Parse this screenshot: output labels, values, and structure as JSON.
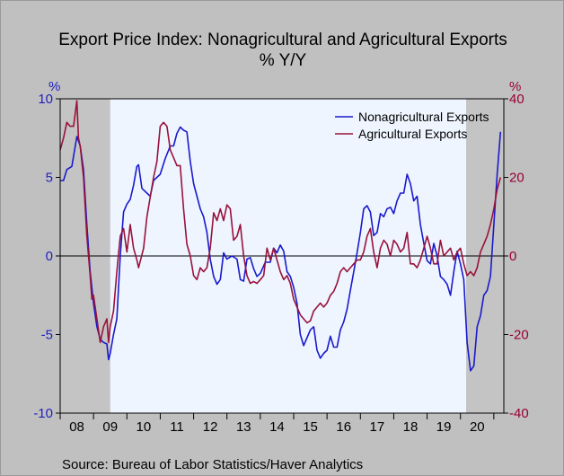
{
  "chart_data": {
    "type": "line",
    "title": "Export Price Index: Nonagricultural and Agricultural Exports",
    "subtitle": "% Y/Y",
    "left_axis": {
      "label": "%",
      "ticks": [
        10,
        5,
        0,
        -5,
        -10
      ],
      "range": [
        -10,
        10
      ],
      "color": "#1f1fbf"
    },
    "right_axis": {
      "label": "%",
      "ticks": [
        40,
        20,
        0,
        -20,
        -40
      ],
      "range": [
        -40,
        40
      ],
      "color": "#990033"
    },
    "x_axis": {
      "ticks": [
        "08",
        "09",
        "10",
        "11",
        "12",
        "13",
        "14",
        "15",
        "16",
        "17",
        "18",
        "19",
        "20"
      ],
      "range": [
        2008.0,
        2021.3
      ]
    },
    "recessions": [
      [
        2008.0,
        2009.5
      ],
      [
        2020.17,
        2021.3
      ]
    ],
    "legend": "top-right",
    "series": [
      {
        "name": "Nonagricultural Exports",
        "axis": "left",
        "color": "#1a1acc",
        "points": [
          [
            2008.0,
            4.8
          ],
          [
            2008.1,
            4.8
          ],
          [
            2008.2,
            5.5
          ],
          [
            2008.35,
            5.7
          ],
          [
            2008.5,
            7.6
          ],
          [
            2008.6,
            7.0
          ],
          [
            2008.7,
            5.5
          ],
          [
            2008.8,
            2.0
          ],
          [
            2008.9,
            -1.0
          ],
          [
            2009.0,
            -3.0
          ],
          [
            2009.1,
            -4.5
          ],
          [
            2009.2,
            -5.3
          ],
          [
            2009.3,
            -5.5
          ],
          [
            2009.4,
            -5.6
          ],
          [
            2009.45,
            -6.6
          ],
          [
            2009.5,
            -6.2
          ],
          [
            2009.6,
            -5.0
          ],
          [
            2009.7,
            -4.0
          ],
          [
            2009.8,
            0.0
          ],
          [
            2009.9,
            2.8
          ],
          [
            2010.0,
            3.3
          ],
          [
            2010.1,
            3.6
          ],
          [
            2010.2,
            4.5
          ],
          [
            2010.3,
            5.7
          ],
          [
            2010.35,
            5.8
          ],
          [
            2010.45,
            4.3
          ],
          [
            2010.6,
            4.0
          ],
          [
            2010.7,
            3.8
          ],
          [
            2010.8,
            4.8
          ],
          [
            2010.9,
            5.0
          ],
          [
            2011.0,
            5.2
          ],
          [
            2011.15,
            6.2
          ],
          [
            2011.3,
            7.0
          ],
          [
            2011.4,
            7.0
          ],
          [
            2011.5,
            7.8
          ],
          [
            2011.6,
            8.2
          ],
          [
            2011.7,
            8.0
          ],
          [
            2011.8,
            7.9
          ],
          [
            2011.9,
            6.0
          ],
          [
            2012.0,
            4.6
          ],
          [
            2012.2,
            3.0
          ],
          [
            2012.3,
            2.5
          ],
          [
            2012.4,
            1.5
          ],
          [
            2012.5,
            -0.2
          ],
          [
            2012.6,
            -1.3
          ],
          [
            2012.7,
            -1.8
          ],
          [
            2012.8,
            -1.5
          ],
          [
            2012.9,
            0.2
          ],
          [
            2013.0,
            -0.2
          ],
          [
            2013.15,
            0.0
          ],
          [
            2013.3,
            -0.2
          ],
          [
            2013.4,
            -1.5
          ],
          [
            2013.5,
            -1.6
          ],
          [
            2013.6,
            -0.2
          ],
          [
            2013.7,
            -0.1
          ],
          [
            2013.8,
            -0.8
          ],
          [
            2013.9,
            -1.3
          ],
          [
            2014.0,
            -1.1
          ],
          [
            2014.15,
            -0.4
          ],
          [
            2014.3,
            -0.4
          ],
          [
            2014.4,
            0.5
          ],
          [
            2014.5,
            0.2
          ],
          [
            2014.6,
            0.7
          ],
          [
            2014.7,
            0.3
          ],
          [
            2014.8,
            -1.0
          ],
          [
            2014.9,
            -1.3
          ],
          [
            2015.0,
            -2.0
          ],
          [
            2015.1,
            -3.0
          ],
          [
            2015.2,
            -5.0
          ],
          [
            2015.3,
            -5.7
          ],
          [
            2015.4,
            -5.2
          ],
          [
            2015.5,
            -4.7
          ],
          [
            2015.6,
            -4.5
          ],
          [
            2015.7,
            -6.0
          ],
          [
            2015.8,
            -6.5
          ],
          [
            2015.9,
            -6.2
          ],
          [
            2016.0,
            -6.0
          ],
          [
            2016.1,
            -5.1
          ],
          [
            2016.2,
            -5.8
          ],
          [
            2016.3,
            -5.8
          ],
          [
            2016.4,
            -4.7
          ],
          [
            2016.5,
            -4.2
          ],
          [
            2016.6,
            -3.4
          ],
          [
            2016.7,
            -2.2
          ],
          [
            2016.8,
            -1.0
          ],
          [
            2016.9,
            0.2
          ],
          [
            2017.0,
            1.5
          ],
          [
            2017.1,
            3.0
          ],
          [
            2017.2,
            3.2
          ],
          [
            2017.3,
            2.8
          ],
          [
            2017.4,
            1.3
          ],
          [
            2017.5,
            1.5
          ],
          [
            2017.6,
            2.7
          ],
          [
            2017.7,
            2.5
          ],
          [
            2017.8,
            3.0
          ],
          [
            2017.9,
            3.1
          ],
          [
            2018.0,
            2.7
          ],
          [
            2018.1,
            3.5
          ],
          [
            2018.2,
            4.0
          ],
          [
            2018.3,
            4.0
          ],
          [
            2018.4,
            5.2
          ],
          [
            2018.5,
            4.6
          ],
          [
            2018.6,
            3.5
          ],
          [
            2018.7,
            3.8
          ],
          [
            2018.8,
            2.0
          ],
          [
            2018.9,
            0.8
          ],
          [
            2019.0,
            -0.3
          ],
          [
            2019.1,
            -0.5
          ],
          [
            2019.2,
            0.8
          ],
          [
            2019.3,
            0.0
          ],
          [
            2019.4,
            -1.3
          ],
          [
            2019.5,
            -1.5
          ],
          [
            2019.6,
            -1.8
          ],
          [
            2019.7,
            -2.5
          ],
          [
            2019.8,
            -1.0
          ],
          [
            2019.9,
            0.3
          ],
          [
            2020.0,
            -0.5
          ],
          [
            2020.1,
            -1.5
          ],
          [
            2020.2,
            -5.5
          ],
          [
            2020.3,
            -7.3
          ],
          [
            2020.4,
            -7.0
          ],
          [
            2020.5,
            -4.5
          ],
          [
            2020.6,
            -3.8
          ],
          [
            2020.7,
            -2.5
          ],
          [
            2020.8,
            -2.2
          ],
          [
            2020.9,
            -1.3
          ],
          [
            2021.0,
            2.0
          ],
          [
            2021.1,
            5.2
          ],
          [
            2021.2,
            7.9
          ]
        ]
      },
      {
        "name": "Agricultural Exports",
        "axis": "right",
        "color": "#99123a",
        "points": [
          [
            2008.0,
            27.0
          ],
          [
            2008.1,
            30.0
          ],
          [
            2008.2,
            34.0
          ],
          [
            2008.3,
            33.0
          ],
          [
            2008.4,
            33.0
          ],
          [
            2008.5,
            39.5
          ],
          [
            2008.55,
            30.0
          ],
          [
            2008.6,
            28.0
          ],
          [
            2008.7,
            20.0
          ],
          [
            2008.8,
            5.0
          ],
          [
            2008.9,
            -5.0
          ],
          [
            2008.95,
            -11.0
          ],
          [
            2009.0,
            -10.0
          ],
          [
            2009.1,
            -16.0
          ],
          [
            2009.2,
            -22.0
          ],
          [
            2009.3,
            -18.0
          ],
          [
            2009.4,
            -16.0
          ],
          [
            2009.45,
            -22.0
          ],
          [
            2009.5,
            -18.0
          ],
          [
            2009.6,
            -14.0
          ],
          [
            2009.7,
            -4.0
          ],
          [
            2009.8,
            5.0
          ],
          [
            2009.9,
            7.0
          ],
          [
            2010.0,
            1.0
          ],
          [
            2010.1,
            8.0
          ],
          [
            2010.2,
            2.0
          ],
          [
            2010.3,
            -1.0
          ],
          [
            2010.35,
            -3.0
          ],
          [
            2010.5,
            2.0
          ],
          [
            2010.6,
            10.0
          ],
          [
            2010.7,
            15.0
          ],
          [
            2010.8,
            20.0
          ],
          [
            2010.9,
            24.0
          ],
          [
            2011.0,
            33.0
          ],
          [
            2011.1,
            34.0
          ],
          [
            2011.2,
            33.0
          ],
          [
            2011.3,
            27.0
          ],
          [
            2011.4,
            25.0
          ],
          [
            2011.5,
            23.0
          ],
          [
            2011.6,
            23.0
          ],
          [
            2011.7,
            12.0
          ],
          [
            2011.8,
            3.0
          ],
          [
            2011.9,
            0.0
          ],
          [
            2012.0,
            -5.0
          ],
          [
            2012.1,
            -6.0
          ],
          [
            2012.2,
            -3.0
          ],
          [
            2012.3,
            -4.0
          ],
          [
            2012.4,
            -3.0
          ],
          [
            2012.5,
            2.0
          ],
          [
            2012.6,
            11.0
          ],
          [
            2012.7,
            9.0
          ],
          [
            2012.8,
            12.0
          ],
          [
            2012.9,
            9.0
          ],
          [
            2013.0,
            13.0
          ],
          [
            2013.1,
            12.0
          ],
          [
            2013.2,
            4.0
          ],
          [
            2013.3,
            5.0
          ],
          [
            2013.4,
            8.0
          ],
          [
            2013.5,
            0.0
          ],
          [
            2013.6,
            -5.0
          ],
          [
            2013.7,
            -7.0
          ],
          [
            2013.8,
            -6.5
          ],
          [
            2013.9,
            -7.0
          ],
          [
            2014.0,
            -6.0
          ],
          [
            2014.1,
            -5.0
          ],
          [
            2014.2,
            2.0
          ],
          [
            2014.3,
            -1.0
          ],
          [
            2014.4,
            2.0
          ],
          [
            2014.5,
            -1.0
          ],
          [
            2014.6,
            -4.0
          ],
          [
            2014.7,
            -6.0
          ],
          [
            2014.8,
            -5.0
          ],
          [
            2014.9,
            -7.0
          ],
          [
            2015.0,
            -11.0
          ],
          [
            2015.1,
            -13.0
          ],
          [
            2015.2,
            -15.0
          ],
          [
            2015.3,
            -16.0
          ],
          [
            2015.4,
            -17.0
          ],
          [
            2015.5,
            -16.5
          ],
          [
            2015.6,
            -14.0
          ],
          [
            2015.7,
            -13.0
          ],
          [
            2015.8,
            -12.0
          ],
          [
            2015.9,
            -13.0
          ],
          [
            2016.0,
            -12.0
          ],
          [
            2016.1,
            -10.0
          ],
          [
            2016.2,
            -9.0
          ],
          [
            2016.3,
            -7.0
          ],
          [
            2016.4,
            -4.0
          ],
          [
            2016.5,
            -3.0
          ],
          [
            2016.6,
            -4.0
          ],
          [
            2016.7,
            -3.0
          ],
          [
            2016.8,
            -2.0
          ],
          [
            2016.9,
            -1.0
          ],
          [
            2017.0,
            -1.0
          ],
          [
            2017.1,
            1.0
          ],
          [
            2017.2,
            5.0
          ],
          [
            2017.3,
            7.0
          ],
          [
            2017.4,
            1.0
          ],
          [
            2017.5,
            -3.0
          ],
          [
            2017.6,
            2.0
          ],
          [
            2017.7,
            4.0
          ],
          [
            2017.8,
            3.0
          ],
          [
            2017.9,
            0.0
          ],
          [
            2018.0,
            4.0
          ],
          [
            2018.1,
            3.0
          ],
          [
            2018.2,
            1.0
          ],
          [
            2018.3,
            2.0
          ],
          [
            2018.4,
            6.0
          ],
          [
            2018.5,
            -2.0
          ],
          [
            2018.6,
            -2.0
          ],
          [
            2018.7,
            -3.0
          ],
          [
            2018.8,
            -1.0
          ],
          [
            2018.9,
            2.0
          ],
          [
            2019.0,
            5.0
          ],
          [
            2019.1,
            2.0
          ],
          [
            2019.2,
            -2.0
          ],
          [
            2019.3,
            -2.0
          ],
          [
            2019.4,
            4.0
          ],
          [
            2019.5,
            0.0
          ],
          [
            2019.6,
            1.0
          ],
          [
            2019.7,
            2.0
          ],
          [
            2019.8,
            -1.0
          ],
          [
            2019.9,
            1.0
          ],
          [
            2020.0,
            2.0
          ],
          [
            2020.1,
            -2.0
          ],
          [
            2020.2,
            -5.0
          ],
          [
            2020.3,
            -4.0
          ],
          [
            2020.4,
            -5.0
          ],
          [
            2020.5,
            -3.0
          ],
          [
            2020.6,
            1.0
          ],
          [
            2020.7,
            3.0
          ],
          [
            2020.8,
            5.0
          ],
          [
            2020.9,
            8.0
          ],
          [
            2021.0,
            12.0
          ],
          [
            2021.1,
            17.0
          ],
          [
            2021.2,
            20.0
          ]
        ]
      }
    ]
  },
  "footer": {
    "source": "Source:  Bureau of Labor Statistics/Haver Analytics"
  }
}
